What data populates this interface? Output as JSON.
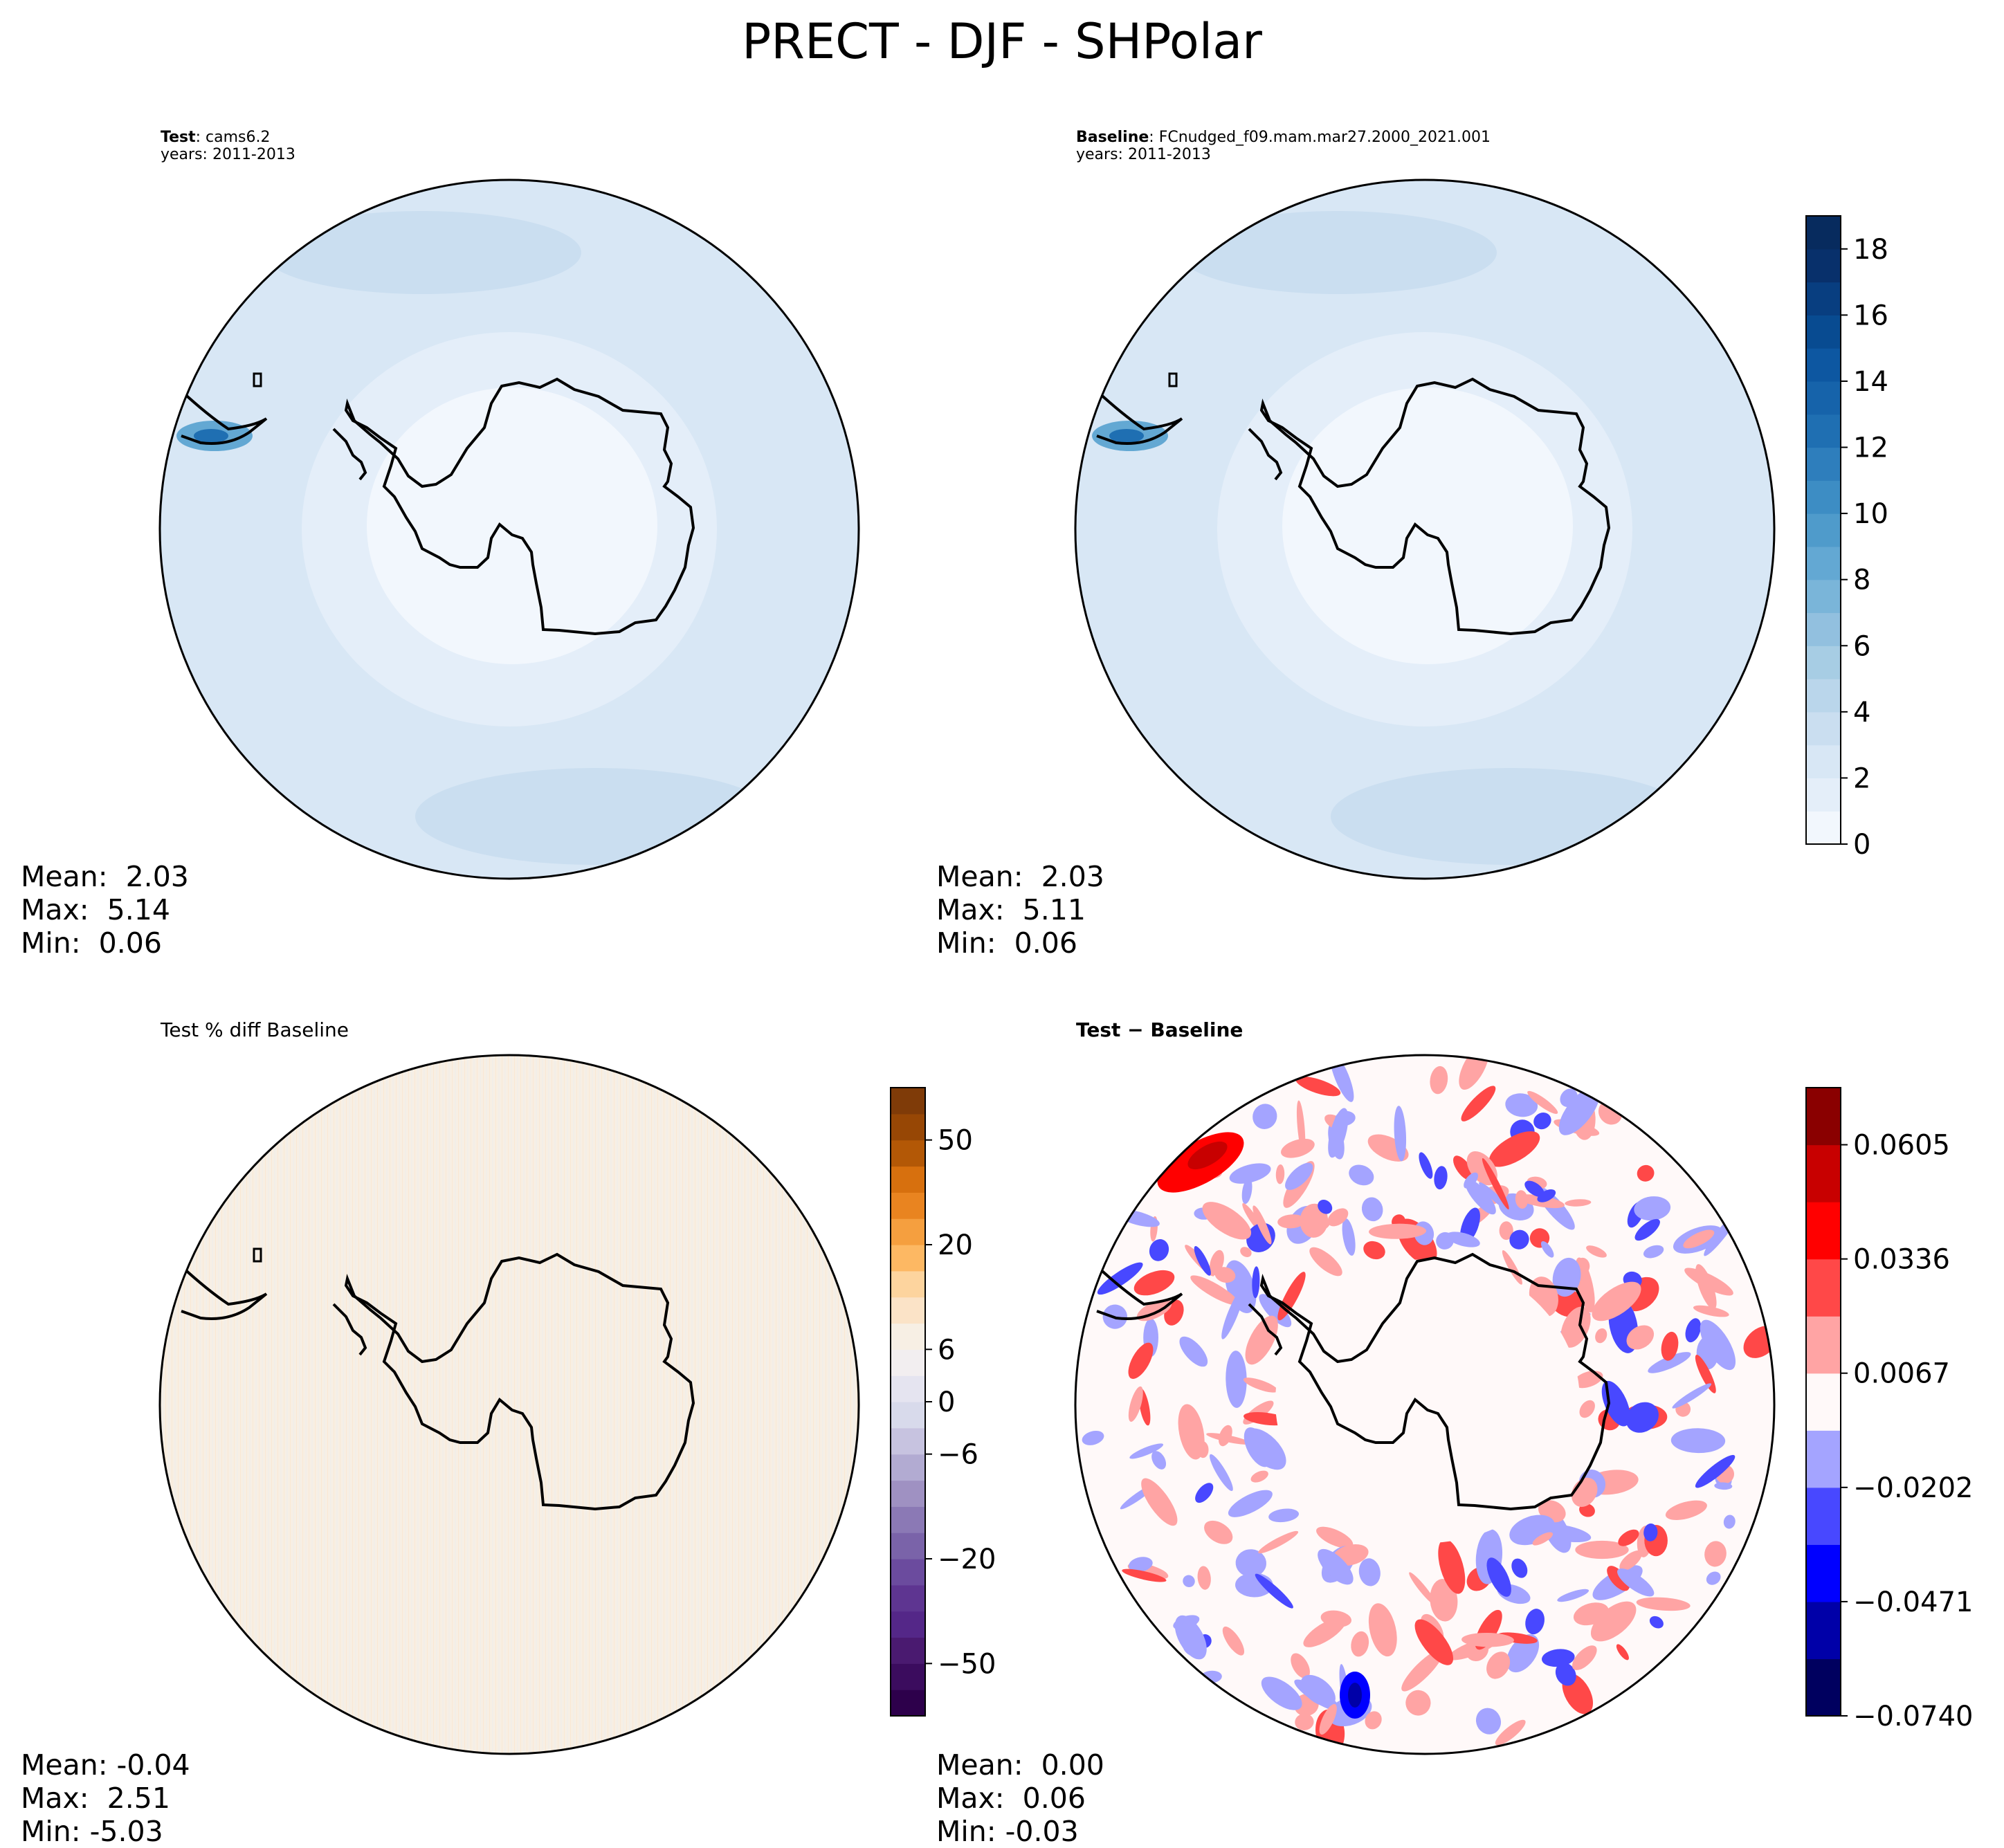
{
  "title": "PRECT - DJF - SHPolar",
  "panels": [
    {
      "id": "test",
      "label_bold": "Test",
      "label_rest": ": cams6.2",
      "years": "years: 2011-2013",
      "stats": {
        "mean": "Mean:  2.03",
        "max": "Max:  5.14",
        "min": "Min:  0.06"
      }
    },
    {
      "id": "baseline",
      "label_bold": "Baseline",
      "label_rest": ": FCnudged_f09.mam.mar27.2000_2021.001",
      "years": "years: 2011-2013",
      "stats": {
        "mean": "Mean:  2.03",
        "max": "Max:  5.11",
        "min": "Min:  0.06"
      }
    },
    {
      "id": "pctdiff",
      "label_plain": "Test % diff Baseline",
      "stats": {
        "mean": "Mean: -0.04",
        "max": "Max:  2.51",
        "min": "Min: -5.03"
      }
    },
    {
      "id": "diff",
      "label_bold": "Test − Baseline",
      "stats": {
        "mean": "Mean:  0.00",
        "max": "Max:  0.06",
        "min": "Min: -0.03"
      }
    }
  ],
  "colorbars": {
    "precip": {
      "ticks": [
        "0",
        "2",
        "4",
        "6",
        "8",
        "10",
        "12",
        "14",
        "16",
        "18"
      ],
      "tick_values": [
        0,
        2,
        4,
        6,
        8,
        10,
        12,
        14,
        16,
        18
      ],
      "range": [
        0,
        19
      ],
      "colors": [
        "#f2f7fd",
        "#e4eef9",
        "#d8e7f5",
        "#cadef0",
        "#bad6eb",
        "#a7cde4",
        "#92c0df",
        "#7ab5d9",
        "#63a8d3",
        "#4f9bcb",
        "#3d8dc4",
        "#2e7ebc",
        "#1f6fb2",
        "#1663aa",
        "#0d57a1",
        "#084b91",
        "#083e80",
        "#08306b",
        "#072b5e"
      ]
    },
    "pctdiff": {
      "ticks": [
        "−50",
        "−20",
        "−6",
        "0",
        "6",
        "20",
        "50"
      ],
      "levels": 24,
      "tick_level_index": [
        2,
        6,
        10,
        12,
        14,
        18,
        22
      ],
      "colors": [
        "#2d004b",
        "#3b0c5e",
        "#4a1a70",
        "#542788",
        "#5e3591",
        "#6b4b9e",
        "#7a63a9",
        "#8b79b5",
        "#9f91c2",
        "#b2abd2",
        "#c7c3e0",
        "#d8daeb",
        "#e5e4f0",
        "#f2eef0",
        "#f7efe4",
        "#fbe3c7",
        "#fdd49e",
        "#fdb863",
        "#f59f3f",
        "#e98420",
        "#d7700e",
        "#b35806",
        "#974705",
        "#7f3b08"
      ]
    },
    "diff": {
      "ticks": [
        "−0.0740",
        "−0.0471",
        "−0.0202",
        "0.0067",
        "0.0336",
        "0.0605"
      ],
      "levels": 11,
      "tick_level_index": [
        0,
        2,
        4,
        6,
        8,
        10
      ],
      "colors": [
        "#00005f",
        "#0000a8",
        "#0000ff",
        "#4848ff",
        "#a4a4ff",
        "#fff9f9",
        "#ffa4a4",
        "#ff4848",
        "#ff0000",
        "#c80000",
        "#8a0000"
      ]
    }
  },
  "chart_data": [
    {
      "type": "heatmap",
      "title": "Test: cams6.2 (years: 2011-2013)",
      "variable": "PRECT",
      "season": "DJF",
      "region": "SHPolar",
      "colorbar_range": [
        0,
        19
      ],
      "mean": 2.03,
      "max": 5.14,
      "min": 0.06
    },
    {
      "type": "heatmap",
      "title": "Baseline: FCnudged_f09.mam.mar27.2000_2021.001 (years: 2011-2013)",
      "colorbar_range": [
        0,
        19
      ],
      "mean": 2.03,
      "max": 5.11,
      "min": 0.06
    },
    {
      "type": "heatmap",
      "title": "Test % diff Baseline",
      "colorbar_ticks": [
        -50,
        -20,
        -6,
        0,
        6,
        20,
        50
      ],
      "mean": -0.04,
      "max": 2.51,
      "min": -5.03
    },
    {
      "type": "heatmap",
      "title": "Test − Baseline",
      "colorbar_ticks": [
        -0.074,
        -0.0471,
        -0.0202,
        0.0067,
        0.0336,
        0.0605
      ],
      "mean": 0.0,
      "max": 0.06,
      "min": -0.03
    }
  ]
}
